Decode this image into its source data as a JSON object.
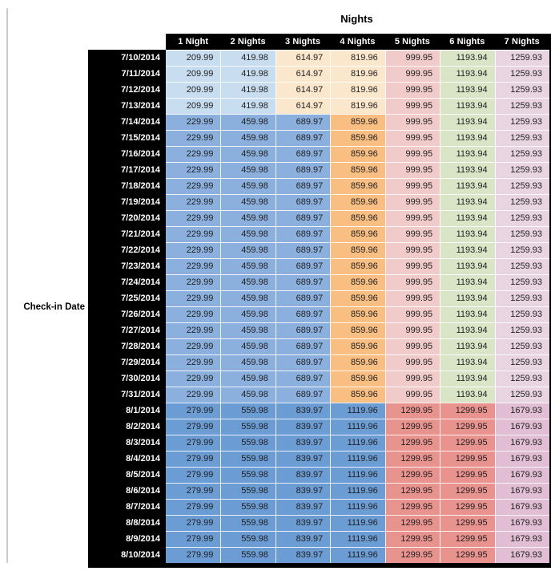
{
  "chart_data": {
    "type": "table",
    "title": "Nights",
    "row_axis_label": "Check-in Date",
    "columns": [
      "1 Night",
      "2 Nights",
      "3 Nights",
      "4 Nights",
      "5 Nights",
      "6 Nights",
      "7 Nights"
    ],
    "rows": [
      {
        "date": "7/10/2014",
        "band": "jul10_13",
        "values": [
          209.99,
          419.98,
          614.97,
          819.96,
          999.95,
          1193.94,
          1259.93
        ]
      },
      {
        "date": "7/11/2014",
        "band": "jul10_13",
        "values": [
          209.99,
          419.98,
          614.97,
          819.96,
          999.95,
          1193.94,
          1259.93
        ]
      },
      {
        "date": "7/12/2014",
        "band": "jul10_13",
        "values": [
          209.99,
          419.98,
          614.97,
          819.96,
          999.95,
          1193.94,
          1259.93
        ]
      },
      {
        "date": "7/13/2014",
        "band": "jul10_13",
        "values": [
          209.99,
          419.98,
          614.97,
          819.96,
          999.95,
          1193.94,
          1259.93
        ]
      },
      {
        "date": "7/14/2014",
        "band": "jul14_31",
        "values": [
          229.99,
          459.98,
          689.97,
          859.96,
          999.95,
          1193.94,
          1259.93
        ]
      },
      {
        "date": "7/15/2014",
        "band": "jul14_31",
        "values": [
          229.99,
          459.98,
          689.97,
          859.96,
          999.95,
          1193.94,
          1259.93
        ]
      },
      {
        "date": "7/16/2014",
        "band": "jul14_31",
        "values": [
          229.99,
          459.98,
          689.97,
          859.96,
          999.95,
          1193.94,
          1259.93
        ]
      },
      {
        "date": "7/17/2014",
        "band": "jul14_31",
        "values": [
          229.99,
          459.98,
          689.97,
          859.96,
          999.95,
          1193.94,
          1259.93
        ]
      },
      {
        "date": "7/18/2014",
        "band": "jul14_31",
        "values": [
          229.99,
          459.98,
          689.97,
          859.96,
          999.95,
          1193.94,
          1259.93
        ]
      },
      {
        "date": "7/19/2014",
        "band": "jul14_31",
        "values": [
          229.99,
          459.98,
          689.97,
          859.96,
          999.95,
          1193.94,
          1259.93
        ]
      },
      {
        "date": "7/20/2014",
        "band": "jul14_31",
        "values": [
          229.99,
          459.98,
          689.97,
          859.96,
          999.95,
          1193.94,
          1259.93
        ]
      },
      {
        "date": "7/21/2014",
        "band": "jul14_31",
        "values": [
          229.99,
          459.98,
          689.97,
          859.96,
          999.95,
          1193.94,
          1259.93
        ]
      },
      {
        "date": "7/22/2014",
        "band": "jul14_31",
        "values": [
          229.99,
          459.98,
          689.97,
          859.96,
          999.95,
          1193.94,
          1259.93
        ]
      },
      {
        "date": "7/23/2014",
        "band": "jul14_31",
        "values": [
          229.99,
          459.98,
          689.97,
          859.96,
          999.95,
          1193.94,
          1259.93
        ]
      },
      {
        "date": "7/24/2014",
        "band": "jul14_31",
        "values": [
          229.99,
          459.98,
          689.97,
          859.96,
          999.95,
          1193.94,
          1259.93
        ]
      },
      {
        "date": "7/25/2014",
        "band": "jul14_31",
        "values": [
          229.99,
          459.98,
          689.97,
          859.96,
          999.95,
          1193.94,
          1259.93
        ]
      },
      {
        "date": "7/26/2014",
        "band": "jul14_31",
        "values": [
          229.99,
          459.98,
          689.97,
          859.96,
          999.95,
          1193.94,
          1259.93
        ]
      },
      {
        "date": "7/27/2014",
        "band": "jul14_31",
        "values": [
          229.99,
          459.98,
          689.97,
          859.96,
          999.95,
          1193.94,
          1259.93
        ]
      },
      {
        "date": "7/28/2014",
        "band": "jul14_31",
        "values": [
          229.99,
          459.98,
          689.97,
          859.96,
          999.95,
          1193.94,
          1259.93
        ]
      },
      {
        "date": "7/29/2014",
        "band": "jul14_31",
        "values": [
          229.99,
          459.98,
          689.97,
          859.96,
          999.95,
          1193.94,
          1259.93
        ]
      },
      {
        "date": "7/30/2014",
        "band": "jul14_31",
        "values": [
          229.99,
          459.98,
          689.97,
          859.96,
          999.95,
          1193.94,
          1259.93
        ]
      },
      {
        "date": "7/31/2014",
        "band": "jul14_31",
        "values": [
          229.99,
          459.98,
          689.97,
          859.96,
          999.95,
          1193.94,
          1259.93
        ]
      },
      {
        "date": "8/1/2014",
        "band": "aug1_10",
        "values": [
          279.99,
          559.98,
          839.97,
          1119.96,
          1299.95,
          1299.95,
          1679.93
        ]
      },
      {
        "date": "8/2/2014",
        "band": "aug1_10",
        "values": [
          279.99,
          559.98,
          839.97,
          1119.96,
          1299.95,
          1299.95,
          1679.93
        ]
      },
      {
        "date": "8/3/2014",
        "band": "aug1_10",
        "values": [
          279.99,
          559.98,
          839.97,
          1119.96,
          1299.95,
          1299.95,
          1679.93
        ]
      },
      {
        "date": "8/4/2014",
        "band": "aug1_10",
        "values": [
          279.99,
          559.98,
          839.97,
          1119.96,
          1299.95,
          1299.95,
          1679.93
        ]
      },
      {
        "date": "8/5/2014",
        "band": "aug1_10",
        "values": [
          279.99,
          559.98,
          839.97,
          1119.96,
          1299.95,
          1299.95,
          1679.93
        ]
      },
      {
        "date": "8/6/2014",
        "band": "aug1_10",
        "values": [
          279.99,
          559.98,
          839.97,
          1119.96,
          1299.95,
          1299.95,
          1679.93
        ]
      },
      {
        "date": "8/7/2014",
        "band": "aug1_10",
        "values": [
          279.99,
          559.98,
          839.97,
          1119.96,
          1299.95,
          1299.95,
          1679.93
        ]
      },
      {
        "date": "8/8/2014",
        "band": "aug1_10",
        "values": [
          279.99,
          559.98,
          839.97,
          1119.96,
          1299.95,
          1299.95,
          1679.93
        ]
      },
      {
        "date": "8/9/2014",
        "band": "aug1_10",
        "values": [
          279.99,
          559.98,
          839.97,
          1119.96,
          1299.95,
          1299.95,
          1679.93
        ]
      },
      {
        "date": "8/10/2014",
        "band": "aug1_10",
        "values": [
          279.99,
          559.98,
          839.97,
          1119.96,
          1299.95,
          1299.95,
          1679.93
        ]
      }
    ]
  },
  "colors": {
    "header_bg": "#000000",
    "header_text": "#FFFFFF",
    "cell_text": "#1F1F1F",
    "bands": {
      "jul10_13": [
        "#C9DDF1",
        "#C9DDF1",
        "#FBE7CC",
        "#FBE7CC",
        "#F1CBCA",
        "#DAE5C8",
        "#E9D5E1"
      ],
      "jul14_31": [
        "#8CB0DE",
        "#8CB0DE",
        "#8CB0DE",
        "#F8BE82",
        "#F1CBCA",
        "#DAE5C8",
        "#E9D5E1"
      ],
      "aug1_10": [
        "#6C9CD4",
        "#6C9CD4",
        "#6C9CD4",
        "#6C9CD4",
        "#E9938F",
        "#E9938F",
        "#E2BED4"
      ]
    }
  }
}
